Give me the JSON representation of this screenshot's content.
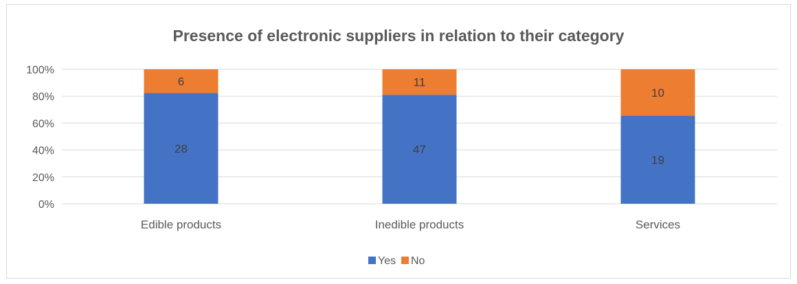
{
  "chart_data": {
    "type": "bar",
    "stacked": true,
    "normalized_percent": true,
    "title": "Presence of electronic suppliers in relation to their category",
    "categories": [
      "Edible products",
      "Inedible products",
      "Services"
    ],
    "series": [
      {
        "name": "Yes",
        "values": [
          28,
          47,
          19
        ],
        "color": "#4472C4"
      },
      {
        "name": "No",
        "values": [
          6,
          11,
          10
        ],
        "color": "#ED7D31"
      }
    ],
    "y_ticks": [
      "0%",
      "20%",
      "40%",
      "60%",
      "80%",
      "100%"
    ],
    "ylim": [
      0,
      100
    ],
    "grid": true,
    "legend_position": "bottom"
  }
}
